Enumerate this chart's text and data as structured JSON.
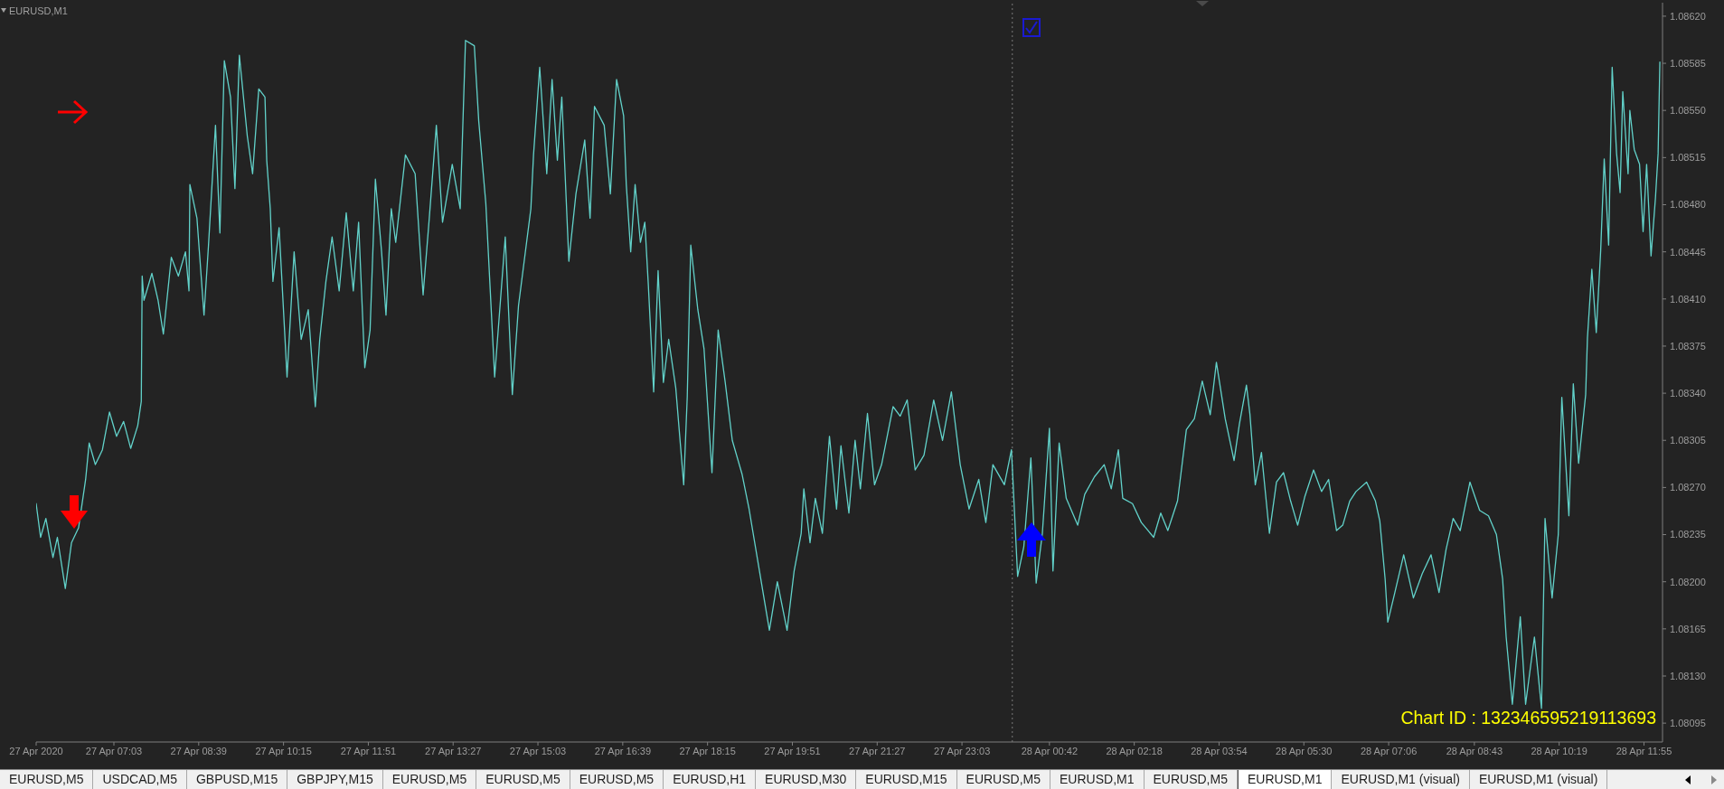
{
  "chart_data": {
    "type": "line",
    "title": "EURUSD,M1",
    "x": [
      "2020-04-27T05:35",
      "2020-04-27T05:40",
      "2020-04-27T05:46",
      "2020-04-27T05:54",
      "2020-04-27T05:59",
      "2020-04-27T06:08",
      "2020-04-27T06:15",
      "2020-04-27T06:23",
      "2020-04-27T06:31",
      "2020-04-27T06:35",
      "2020-04-27T06:42",
      "2020-04-27T06:50",
      "2020-04-27T06:58",
      "2020-04-27T07:06",
      "2020-04-27T07:14",
      "2020-04-27T07:22",
      "2020-04-27T07:30",
      "2020-04-27T07:34",
      "2020-04-27T07:35",
      "2020-04-27T07:37",
      "2020-04-27T07:46",
      "2020-04-27T07:53",
      "2020-04-27T07:59",
      "2020-04-27T08:08",
      "2020-04-27T08:16",
      "2020-04-27T08:24",
      "2020-04-27T08:28",
      "2020-04-27T08:29",
      "2020-04-27T08:37",
      "2020-04-27T08:45",
      "2020-04-27T08:50",
      "2020-04-27T08:58",
      "2020-04-27T09:03",
      "2020-04-27T09:08",
      "2020-04-27T09:15",
      "2020-04-27T09:20",
      "2020-04-27T09:25",
      "2020-04-27T09:34",
      "2020-04-27T09:40",
      "2020-04-27T09:47",
      "2020-04-27T09:54",
      "2020-04-27T09:56",
      "2020-04-27T10:00",
      "2020-04-27T10:03",
      "2020-04-27T10:10",
      "2020-04-27T10:19",
      "2020-04-27T10:27",
      "2020-04-27T10:35",
      "2020-04-27T10:43",
      "2020-04-27T10:51",
      "2020-04-27T10:56",
      "2020-04-27T11:03",
      "2020-04-27T11:10",
      "2020-04-27T11:18",
      "2020-04-27T11:26",
      "2020-04-27T11:34",
      "2020-04-27T11:40",
      "2020-04-27T11:47",
      "2020-04-27T11:53",
      "2020-04-27T11:59",
      "2020-04-27T12:06",
      "2020-04-27T12:11",
      "2020-04-27T12:17",
      "2020-04-27T12:22",
      "2020-04-27T12:33",
      "2020-04-27T12:44",
      "2020-04-27T12:53",
      "2020-04-27T13:00",
      "2020-04-27T13:08",
      "2020-04-27T13:15",
      "2020-04-27T13:26",
      "2020-04-27T13:35",
      "2020-04-27T13:41",
      "2020-04-27T13:51",
      "2020-04-27T13:56",
      "2020-04-27T14:04",
      "2020-04-27T14:14",
      "2020-04-27T14:26",
      "2020-04-27T14:34",
      "2020-04-27T14:41",
      "2020-04-27T14:55",
      "2020-04-27T14:58",
      "2020-04-27T15:05",
      "2020-04-27T15:13",
      "2020-04-27T15:19",
      "2020-04-27T15:25",
      "2020-04-27T15:30",
      "2020-04-27T15:38",
      "2020-04-27T15:46",
      "2020-04-27T15:56",
      "2020-04-27T16:02",
      "2020-04-27T16:07",
      "2020-04-27T16:18",
      "2020-04-27T16:25",
      "2020-04-27T16:32",
      "2020-04-27T16:40",
      "2020-04-27T16:43",
      "2020-04-27T16:48",
      "2020-04-27T16:53",
      "2020-04-27T16:59",
      "2020-04-27T17:04",
      "2020-04-27T17:08",
      "2020-04-27T17:14",
      "2020-04-27T17:19",
      "2020-04-27T17:25",
      "2020-04-27T17:31",
      "2020-04-27T17:39",
      "2020-04-27T17:48",
      "2020-04-27T17:52",
      "2020-04-27T17:56",
      "2020-04-27T18:04",
      "2020-04-27T18:11",
      "2020-04-27T18:20",
      "2020-04-27T18:27",
      "2020-04-27T18:35",
      "2020-04-27T18:43",
      "2020-04-27T18:54",
      "2020-04-27T19:02",
      "2020-04-27T19:13",
      "2020-04-27T19:25",
      "2020-04-27T19:34",
      "2020-04-27T19:45",
      "2020-04-27T19:53",
      "2020-04-27T20:01",
      "2020-04-27T20:04",
      "2020-04-27T20:11",
      "2020-04-27T20:17",
      "2020-04-27T20:25",
      "2020-04-27T20:33",
      "2020-04-27T20:41",
      "2020-04-27T20:46",
      "2020-04-27T20:55",
      "2020-04-27T21:02",
      "2020-04-27T21:08",
      "2020-04-27T21:16",
      "2020-04-27T21:24",
      "2020-04-27T21:32",
      "2020-04-27T21:45",
      "2020-04-27T21:53",
      "2020-04-27T22:01",
      "2020-04-27T22:10",
      "2020-04-27T22:20",
      "2020-04-27T22:31",
      "2020-04-27T22:41",
      "2020-04-27T22:51",
      "2020-04-27T23:01",
      "2020-04-27T23:11",
      "2020-04-27T23:22",
      "2020-04-27T23:30",
      "2020-04-27T23:38",
      "2020-04-27T23:51",
      "2020-04-27T23:59",
      "2020-04-28T00:06",
      "2020-04-28T00:13",
      "2020-04-28T00:21",
      "2020-04-28T00:27",
      "2020-04-28T00:34",
      "2020-04-28T00:42",
      "2020-04-28T00:46",
      "2020-04-28T00:53",
      "2020-04-28T01:01",
      "2020-04-28T01:14",
      "2020-04-28T01:22",
      "2020-04-28T01:33",
      "2020-04-28T01:44",
      "2020-04-28T01:52",
      "2020-04-28T02:00",
      "2020-04-28T02:05",
      "2020-04-28T02:16",
      "2020-04-28T02:26",
      "2020-04-28T02:40",
      "2020-04-28T02:48",
      "2020-04-28T02:56",
      "2020-04-28T03:07",
      "2020-04-28T03:11",
      "2020-04-28T03:17",
      "2020-04-28T03:26",
      "2020-04-28T03:35",
      "2020-04-28T03:44",
      "2020-04-28T03:51",
      "2020-04-28T04:01",
      "2020-04-28T04:11",
      "2020-04-28T04:17",
      "2020-04-28T04:25",
      "2020-04-28T04:29",
      "2020-04-28T04:35",
      "2020-04-28T04:42",
      "2020-04-28T04:51",
      "2020-04-28T04:59",
      "2020-04-28T05:07",
      "2020-04-28T05:15",
      "2020-04-28T05:23",
      "2020-04-28T05:31",
      "2020-04-28T05:41",
      "2020-04-28T05:50",
      "2020-04-28T05:58",
      "2020-04-28T06:07",
      "2020-04-28T06:14",
      "2020-04-28T06:22",
      "2020-04-28T06:29",
      "2020-04-28T06:41",
      "2020-04-28T06:51",
      "2020-04-28T06:56",
      "2020-04-28T07:02",
      "2020-04-28T07:05",
      "2020-04-28T07:13",
      "2020-04-28T07:23",
      "2020-04-28T07:34",
      "2020-04-28T07:44",
      "2020-04-28T07:54",
      "2020-04-28T08:03",
      "2020-04-28T08:11",
      "2020-04-28T08:19",
      "2020-04-28T08:27",
      "2020-04-28T08:38",
      "2020-04-28T08:49",
      "2020-04-28T08:59",
      "2020-04-28T09:08",
      "2020-04-28T09:15",
      "2020-04-28T09:19",
      "2020-04-28T09:26",
      "2020-04-28T09:35",
      "2020-04-28T09:41",
      "2020-04-28T09:51",
      "2020-04-28T09:59",
      "2020-04-28T10:03",
      "2020-04-28T10:11",
      "2020-04-28T10:18",
      "2020-04-28T10:22",
      "2020-04-28T10:30",
      "2020-04-28T10:35",
      "2020-04-28T10:41",
      "2020-04-28T10:49",
      "2020-04-28T10:51",
      "2020-04-28T10:56",
      "2020-04-28T11:01",
      "2020-04-28T11:06",
      "2020-04-28T11:10",
      "2020-04-28T11:15",
      "2020-04-28T11:19",
      "2020-04-28T11:24",
      "2020-04-28T11:28",
      "2020-04-28T11:31",
      "2020-04-28T11:37",
      "2020-04-28T11:39",
      "2020-04-28T11:44",
      "2020-04-28T11:50",
      "2020-04-28T11:54",
      "2020-04-28T11:58",
      "2020-04-28T12:03",
      "2020-04-28T12:08",
      "2020-04-28T12:11",
      "2020-04-28T12:13"
    ],
    "values": [
      1.08258,
      1.08233,
      1.08247,
      1.08218,
      1.08233,
      1.08195,
      1.08229,
      1.0824,
      1.08276,
      1.08303,
      1.08287,
      1.08298,
      1.08326,
      1.08308,
      1.08319,
      1.08299,
      1.08316,
      1.08334,
      1.08427,
      1.08409,
      1.08429,
      1.08409,
      1.08384,
      1.08441,
      1.08427,
      1.08445,
      1.08416,
      1.08495,
      1.0847,
      1.08398,
      1.08449,
      1.08539,
      1.08459,
      1.08587,
      1.0856,
      1.08492,
      1.08591,
      1.08531,
      1.08503,
      1.08566,
      1.0856,
      1.08513,
      1.08477,
      1.08423,
      1.08463,
      1.08352,
      1.08445,
      1.0838,
      1.08402,
      1.0833,
      1.0838,
      1.08423,
      1.08456,
      1.08416,
      1.08474,
      1.08416,
      1.08467,
      1.08359,
      1.08387,
      1.08499,
      1.08445,
      1.08398,
      1.08477,
      1.08452,
      1.08517,
      1.08503,
      1.08413,
      1.0847,
      1.08539,
      1.08467,
      1.0851,
      1.08477,
      1.08602,
      1.08598,
      1.08542,
      1.08481,
      1.08352,
      1.08456,
      1.08339,
      1.08405,
      1.08477,
      1.08517,
      1.08582,
      1.08503,
      1.08573,
      1.08513,
      1.0856,
      1.08438,
      1.08488,
      1.08528,
      1.0847,
      1.08553,
      1.08539,
      1.08488,
      1.08573,
      1.08546,
      1.08495,
      1.08445,
      1.08495,
      1.08452,
      1.08467,
      1.0842,
      1.08341,
      1.08431,
      1.08348,
      1.0838,
      1.08344,
      1.08272,
      1.08337,
      1.0845,
      1.08402,
      1.08373,
      1.08281,
      1.08387,
      1.08348,
      1.08305,
      1.0828,
      1.08254,
      1.08211,
      1.08164,
      1.082,
      1.08164,
      1.08208,
      1.08236,
      1.08269,
      1.08229,
      1.08262,
      1.08236,
      1.08308,
      1.08254,
      1.08301,
      1.08251,
      1.08305,
      1.08269,
      1.08325,
      1.08272,
      1.08287,
      1.0833,
      1.08323,
      1.08335,
      1.08283,
      1.08294,
      1.08335,
      1.08305,
      1.08341,
      1.08287,
      1.08254,
      1.08276,
      1.08244,
      1.08287,
      1.08272,
      1.08298,
      1.08204,
      1.08226,
      1.08292,
      1.08199,
      1.08236,
      1.08314,
      1.08208,
      1.08303,
      1.08262,
      1.08242,
      1.08265,
      1.08278,
      1.08287,
      1.08269,
      1.08298,
      1.08262,
      1.08258,
      1.08244,
      1.08233,
      1.08251,
      1.08238,
      1.0826,
      1.08281,
      1.08313,
      1.08321,
      1.08349,
      1.08324,
      1.08363,
      1.08321,
      1.0829,
      1.08317,
      1.08346,
      1.08324,
      1.08272,
      1.08296,
      1.08236,
      1.08274,
      1.08281,
      1.0826,
      1.08242,
      1.08263,
      1.08283,
      1.08267,
      1.08276,
      1.08238,
      1.08242,
      1.0826,
      1.08267,
      1.08274,
      1.0826,
      1.08245,
      1.08202,
      1.0817,
      1.08192,
      1.0822,
      1.08188,
      1.08206,
      1.0822,
      1.08192,
      1.08224,
      1.08247,
      1.08238,
      1.08274,
      1.08253,
      1.08249,
      1.08235,
      1.08202,
      1.08159,
      1.08109,
      1.08174,
      1.08109,
      1.08159,
      1.08106,
      1.08247,
      1.08188,
      1.08235,
      1.08337,
      1.08249,
      1.08347,
      1.08288,
      1.08339,
      1.08381,
      1.08432,
      1.08385,
      1.08446,
      1.08514,
      1.0845,
      1.08582,
      1.08518,
      1.08489,
      1.08564,
      1.08503,
      1.0855,
      1.08521,
      1.0851,
      1.0846,
      1.0851,
      1.08442,
      1.08485,
      1.08518,
      1.08586
    ],
    "color": "#62d2ca",
    "xlim": [
      "2020-04-27T05:35",
      "2020-04-28T12:16"
    ],
    "xticks": [
      {
        "value": "2020-04-27T05:35",
        "label": "27 Apr 2020"
      },
      {
        "value": "2020-04-27T07:03",
        "label": "27 Apr 07:03"
      },
      {
        "value": "2020-04-27T08:39",
        "label": "27 Apr 08:39"
      },
      {
        "value": "2020-04-27T10:15",
        "label": "27 Apr 10:15"
      },
      {
        "value": "2020-04-27T11:51",
        "label": "27 Apr 11:51"
      },
      {
        "value": "2020-04-27T13:27",
        "label": "27 Apr 13:27"
      },
      {
        "value": "2020-04-27T15:03",
        "label": "27 Apr 15:03"
      },
      {
        "value": "2020-04-27T16:39",
        "label": "27 Apr 16:39"
      },
      {
        "value": "2020-04-27T18:15",
        "label": "27 Apr 18:15"
      },
      {
        "value": "2020-04-27T19:51",
        "label": "27 Apr 19:51"
      },
      {
        "value": "2020-04-27T21:27",
        "label": "27 Apr 21:27"
      },
      {
        "value": "2020-04-27T23:03",
        "label": "27 Apr 23:03"
      },
      {
        "value": "2020-04-28T00:42",
        "label": "28 Apr 00:42"
      },
      {
        "value": "2020-04-28T02:18",
        "label": "28 Apr 02:18"
      },
      {
        "value": "2020-04-28T03:54",
        "label": "28 Apr 03:54"
      },
      {
        "value": "2020-04-28T05:30",
        "label": "28 Apr 05:30"
      },
      {
        "value": "2020-04-28T07:06",
        "label": "28 Apr 07:06"
      },
      {
        "value": "2020-04-28T08:43",
        "label": "28 Apr 08:43"
      },
      {
        "value": "2020-04-28T10:19",
        "label": "28 Apr 10:19"
      },
      {
        "value": "2020-04-28T11:55",
        "label": "28 Apr 11:55"
      }
    ],
    "ylim": [
      1.08081,
      1.0863
    ],
    "yticks": [
      {
        "value": 1.0862,
        "label": "1.08620"
      },
      {
        "value": 1.08585,
        "label": "1.08585"
      },
      {
        "value": 1.0855,
        "label": "1.08550"
      },
      {
        "value": 1.08515,
        "label": "1.08515"
      },
      {
        "value": 1.0848,
        "label": "1.08480"
      },
      {
        "value": 1.08445,
        "label": "1.08445"
      },
      {
        "value": 1.0841,
        "label": "1.08410"
      },
      {
        "value": 1.08375,
        "label": "1.08375"
      },
      {
        "value": 1.0834,
        "label": "1.08340"
      },
      {
        "value": 1.08305,
        "label": "1.08305"
      },
      {
        "value": 1.0827,
        "label": "1.08270"
      },
      {
        "value": 1.08235,
        "label": "1.08235"
      },
      {
        "value": 1.082,
        "label": "1.08200"
      },
      {
        "value": 1.08165,
        "label": "1.08165"
      },
      {
        "value": 1.0813,
        "label": "1.08130"
      },
      {
        "value": 1.08095,
        "label": "1.08095"
      }
    ],
    "ref_lines": [
      {
        "axis": "x",
        "value": "2020-04-28T00:00",
        "color": "#7a7a7a",
        "line_style": "dotted"
      }
    ],
    "annotations": [
      "Chart ID : 132346595219113693",
      "EURUSD,M5",
      "USDCAD,M5",
      "GBPUSD,M15",
      "GBPJPY,M15",
      "EURUSD,M5",
      "EURUSD,M5",
      "EURUSD,M5",
      "EURUSD,H1",
      "EURUSD,M30",
      "EURUSD,M15",
      "EURUSD,M5",
      "EURUSD,M1",
      "EURUSD,M5",
      "EURUSD,M1",
      "EURUSD,M1 (visual)",
      "EURUSD,M1 (visual)"
    ]
  }
}
